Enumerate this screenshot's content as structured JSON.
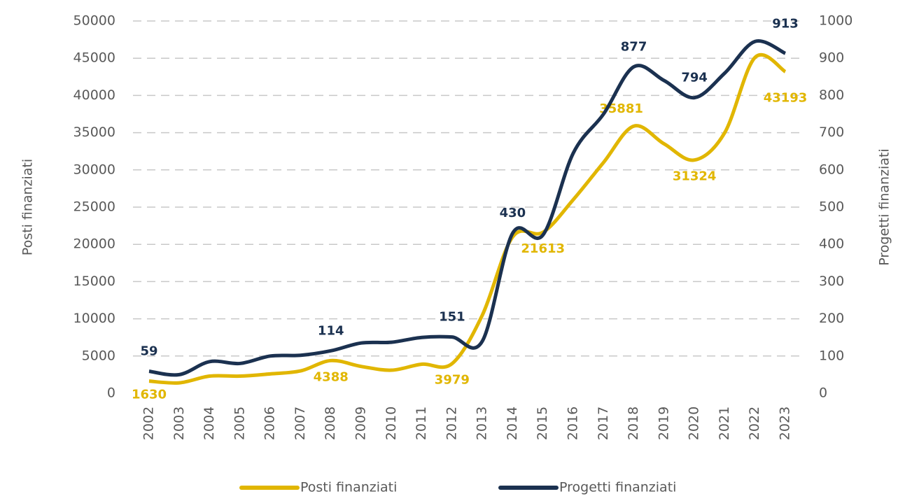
{
  "chart_data": {
    "type": "line",
    "y_label": "Posti finanziati",
    "y2_label": "Progetti finanziati",
    "categories": [
      "2002",
      "2003",
      "2004",
      "2005",
      "2006",
      "2007",
      "2008",
      "2009",
      "2010",
      "2011",
      "2012",
      "2013",
      "2014",
      "2015",
      "2016",
      "2017",
      "2018",
      "2019",
      "2020",
      "2021",
      "2022",
      "2023"
    ],
    "series": [
      {
        "name": "Posti finanziati",
        "color": "#e1b600",
        "values": [
          1630,
          1400,
          2300,
          2300,
          2600,
          3000,
          4388,
          3600,
          3100,
          3900,
          3979,
          10500,
          21000,
          21613,
          26000,
          31000,
          35881,
          33500,
          31324,
          35000,
          45100,
          43193
        ],
        "value_labels": [
          "1630",
          null,
          null,
          null,
          null,
          null,
          "4388",
          null,
          null,
          null,
          "3979",
          null,
          null,
          "21613",
          null,
          null,
          "35881",
          null,
          "31324",
          null,
          null,
          "43193"
        ]
      },
      {
        "name": "Progetti finanziati",
        "color": "#1b3150",
        "axis": "y2",
        "values": [
          59,
          50,
          85,
          80,
          100,
          102,
          114,
          135,
          137,
          150,
          151,
          140,
          430,
          425,
          645,
          750,
          877,
          840,
          794,
          860,
          945,
          913
        ],
        "value_labels": [
          "59",
          null,
          null,
          null,
          null,
          null,
          "114",
          null,
          null,
          null,
          "151",
          null,
          "430",
          null,
          null,
          null,
          "877",
          null,
          "794",
          null,
          null,
          "913"
        ]
      }
    ],
    "ylim": [
      0,
      50000
    ],
    "yticks": [
      0,
      5000,
      10000,
      15000,
      20000,
      25000,
      30000,
      35000,
      40000,
      45000,
      50000
    ],
    "y2lim": [
      0,
      1000
    ],
    "y2ticks": [
      0,
      100,
      200,
      300,
      400,
      500,
      600,
      700,
      800,
      900,
      1000
    ],
    "grid": true,
    "legend": "bottom"
  }
}
